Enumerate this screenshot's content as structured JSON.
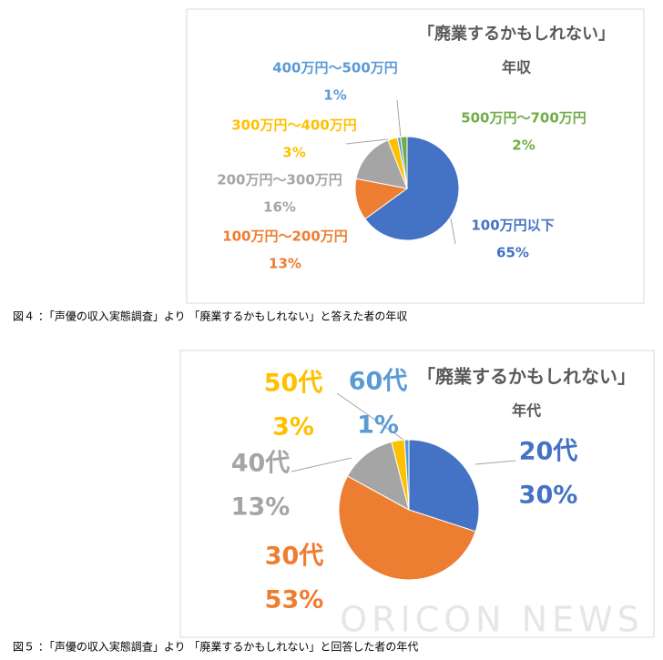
{
  "chart_data": [
    {
      "type": "pie",
      "title": "「廃業するかもしれない」",
      "subtitle": "年収",
      "categories": [
        "100万円以下",
        "100万円～200万円",
        "200万円～300万円",
        "300万円～400万円",
        "400万円～500万円",
        "500万円～700万円"
      ],
      "values": [
        65,
        13,
        16,
        3,
        1,
        2
      ],
      "value_labels": [
        "65%",
        "13%",
        "16%",
        "3%",
        "1%",
        "2%"
      ],
      "colors": [
        "#4472c4",
        "#ed7d31",
        "#a5a5a5",
        "#ffc000",
        "#5b9bd5",
        "#70ad47"
      ],
      "caption": "図４ ：「声優の収入実態調査」より 「廃業するかもしれない」と答えた者の年収"
    },
    {
      "type": "pie",
      "title": "「廃業するかもしれない」",
      "subtitle": "年代",
      "categories": [
        "20代",
        "30代",
        "40代",
        "50代",
        "60代"
      ],
      "values": [
        30,
        53,
        13,
        3,
        1
      ],
      "value_labels": [
        "30%",
        "53%",
        "13%",
        "3%",
        "1%"
      ],
      "colors": [
        "#4472c4",
        "#ed7d31",
        "#a5a5a5",
        "#ffc000",
        "#5b9bd5"
      ],
      "caption": "図５ ：「声優の収入実態調査」より 「廃業するかもしれない」と回答した者の年代"
    }
  ],
  "watermark": "ORICON NEWS"
}
